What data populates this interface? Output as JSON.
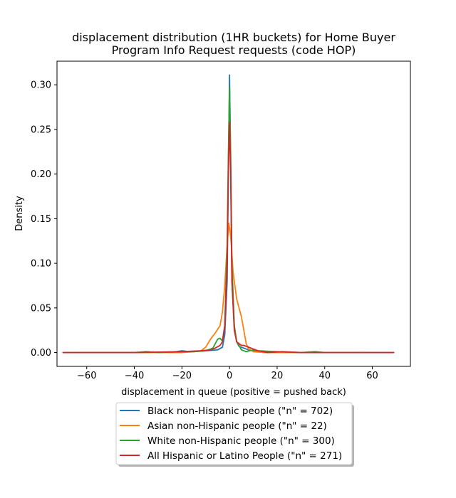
{
  "chart_data": {
    "type": "line",
    "title_line1": "displacement distribution (1HR buckets) for Home Buyer",
    "title_line2": "Program Info Request requests (code HOP)",
    "xlabel": "displacement in queue (positive = pushed back)",
    "ylabel": "Density",
    "xlim": [
      -72.5,
      76.0
    ],
    "ylim": [
      -0.0155,
      0.3265
    ],
    "x_ticks": [
      -60,
      -40,
      -20,
      0,
      20,
      40,
      60
    ],
    "x_tick_labels": [
      "−60",
      "−40",
      "−20",
      "0",
      "20",
      "40",
      "60"
    ],
    "y_ticks": [
      0.0,
      0.05,
      0.1,
      0.15,
      0.2,
      0.25,
      0.3
    ],
    "y_tick_labels": [
      "0.00",
      "0.05",
      "0.10",
      "0.15",
      "0.20",
      "0.25",
      "0.30"
    ],
    "grid": false,
    "legend_position": "below plot, centered",
    "series": [
      {
        "name": "Black non-Hispanic people (\"n\" = 702)",
        "color": "#1f77b4",
        "points": [
          [
            -69,
            0.0
          ],
          [
            -40,
            0.0
          ],
          [
            -25,
            0.0
          ],
          [
            -20,
            0.002
          ],
          [
            -17,
            0.001
          ],
          [
            -10,
            0.002
          ],
          [
            -5,
            0.003
          ],
          [
            -3,
            0.006
          ],
          [
            -2,
            0.02
          ],
          [
            -1,
            0.08
          ],
          [
            -0.5,
            0.2
          ],
          [
            0,
            0.311
          ],
          [
            0.5,
            0.2
          ],
          [
            1,
            0.08
          ],
          [
            2,
            0.03
          ],
          [
            3,
            0.012
          ],
          [
            4,
            0.007
          ],
          [
            6,
            0.005
          ],
          [
            8,
            0.003
          ],
          [
            10,
            0.002
          ],
          [
            15,
            0.0
          ],
          [
            30,
            0.0
          ],
          [
            69,
            0.0
          ]
        ]
      },
      {
        "name": "Asian non-Hispanic people (\"n\" = 22)",
        "color": "#ff7f0e",
        "points": [
          [
            -65,
            0.0
          ],
          [
            -40,
            0.0
          ],
          [
            -20,
            0.0
          ],
          [
            -15,
            0.001
          ],
          [
            -12,
            0.002
          ],
          [
            -10,
            0.006
          ],
          [
            -8,
            0.015
          ],
          [
            -6,
            0.022
          ],
          [
            -4,
            0.03
          ],
          [
            -3,
            0.045
          ],
          [
            -2,
            0.075
          ],
          [
            -1,
            0.12
          ],
          [
            -0.3,
            0.145
          ],
          [
            0.5,
            0.13
          ],
          [
            1.5,
            0.09
          ],
          [
            3,
            0.06
          ],
          [
            4,
            0.05
          ],
          [
            5,
            0.04
          ],
          [
            6,
            0.025
          ],
          [
            7,
            0.01
          ],
          [
            8,
            0.004
          ],
          [
            10,
            0.001
          ],
          [
            15,
            0.0
          ],
          [
            35,
            0.0
          ],
          [
            55,
            0.0
          ]
        ]
      },
      {
        "name": "White non-Hispanic people (\"n\" = 300)",
        "color": "#2ca02c",
        "points": [
          [
            -64,
            0.0
          ],
          [
            -40,
            0.0
          ],
          [
            -35,
            0.001
          ],
          [
            -30,
            0.0
          ],
          [
            -20,
            0.001
          ],
          [
            -15,
            0.001
          ],
          [
            -10,
            0.002
          ],
          [
            -7,
            0.005
          ],
          [
            -6,
            0.01
          ],
          [
            -5,
            0.015
          ],
          [
            -4,
            0.016
          ],
          [
            -3,
            0.013
          ],
          [
            -2,
            0.03
          ],
          [
            -1,
            0.12
          ],
          [
            -0.5,
            0.22
          ],
          [
            0,
            0.297
          ],
          [
            0.5,
            0.22
          ],
          [
            1,
            0.1
          ],
          [
            2,
            0.03
          ],
          [
            3,
            0.012
          ],
          [
            4,
            0.008
          ],
          [
            5,
            0.003
          ],
          [
            6,
            0.002
          ],
          [
            7,
            0.001
          ],
          [
            10,
            0.003
          ],
          [
            12,
            0.002
          ],
          [
            20,
            0.001
          ],
          [
            30,
            0.0
          ],
          [
            36,
            0.001
          ],
          [
            40,
            0.0
          ],
          [
            58,
            0.0
          ]
        ]
      },
      {
        "name": "All Hispanic or Latino People (\"n\" = 271)",
        "color": "#d62728",
        "points": [
          [
            -70,
            0.0
          ],
          [
            -40,
            0.0
          ],
          [
            -20,
            0.001
          ],
          [
            -12,
            0.002
          ],
          [
            -8,
            0.003
          ],
          [
            -6,
            0.005
          ],
          [
            -4,
            0.008
          ],
          [
            -3,
            0.012
          ],
          [
            -2,
            0.03
          ],
          [
            -1,
            0.1
          ],
          [
            -0.5,
            0.2
          ],
          [
            0,
            0.258
          ],
          [
            0.5,
            0.2
          ],
          [
            1,
            0.08
          ],
          [
            2,
            0.025
          ],
          [
            3,
            0.012
          ],
          [
            4,
            0.01
          ],
          [
            5,
            0.008
          ],
          [
            6,
            0.008
          ],
          [
            7,
            0.007
          ],
          [
            8,
            0.006
          ],
          [
            10,
            0.004
          ],
          [
            12,
            0.002
          ],
          [
            16,
            0.0
          ],
          [
            22,
            0.001
          ],
          [
            30,
            0.0
          ],
          [
            69,
            0.0
          ]
        ]
      }
    ]
  }
}
